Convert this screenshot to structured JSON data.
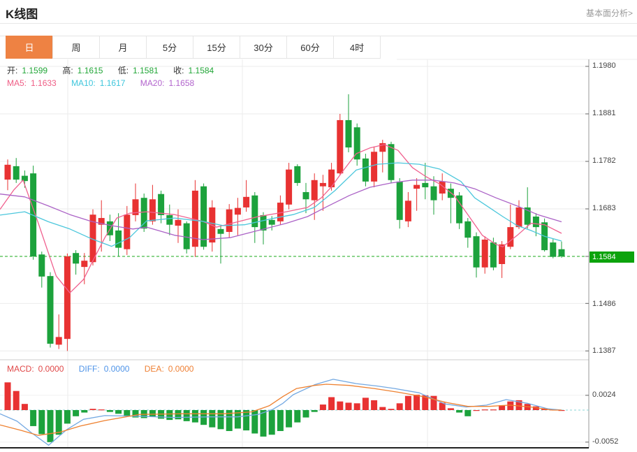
{
  "header": {
    "title": "K线图",
    "link": "基本面分析>"
  },
  "tabs": {
    "items": [
      {
        "label": "日",
        "active": true
      },
      {
        "label": "周",
        "active": false
      },
      {
        "label": "月",
        "active": false
      },
      {
        "label": "5分",
        "active": false
      },
      {
        "label": "15分",
        "active": false
      },
      {
        "label": "30分",
        "active": false
      },
      {
        "label": "60分",
        "active": false
      },
      {
        "label": "4时",
        "active": false
      }
    ]
  },
  "ohlc": {
    "items": [
      {
        "label": "开:",
        "value": "1.1599"
      },
      {
        "label": "高:",
        "value": "1.1615"
      },
      {
        "label": "低:",
        "value": "1.1581"
      },
      {
        "label": "收:",
        "value": "1.1584"
      }
    ]
  },
  "ma_legend": {
    "items": [
      {
        "label": "MA5:",
        "value": "1.1633"
      },
      {
        "label": "MA10:",
        "value": "1.1617"
      },
      {
        "label": "MA20:",
        "value": "1.1658"
      }
    ]
  },
  "macd_legend": {
    "items": [
      {
        "label": "MACD:",
        "value": "0.0000"
      },
      {
        "label": "DIFF:",
        "value": "0.0000"
      },
      {
        "label": "DEA:",
        "value": "0.0000"
      }
    ]
  },
  "price_axis": {
    "labels": [
      "1.1980",
      "1.1881",
      "1.1782",
      "1.1683",
      "1.1486",
      "1.1387"
    ],
    "current": {
      "value": "1.1584"
    }
  },
  "macd_axis": {
    "labels": [
      "0.0024",
      "-0.0052"
    ]
  },
  "colors": {
    "accent_orange": "#ee8243",
    "up_red": "#e83232",
    "down_green": "#1ca23c",
    "ohlc_value_green": "#21a637",
    "ma5_pink": "#ef5d85",
    "ma10_cyan": "#3ec6dc",
    "ma20_purple": "#b264cd",
    "macd_red": "#e04848",
    "diff_blue": "#4f94e8",
    "dea_orange": "#ef8136",
    "badge_green": "#0ca30c",
    "current_line_green": "#18a818"
  },
  "chart_data": {
    "type": "candlestick+macd",
    "title": "K线图",
    "price_ticks": [
      1.198,
      1.1881,
      1.1782,
      1.1683,
      1.1584,
      1.1486,
      1.1387
    ],
    "current_price": 1.1584,
    "today": {
      "open": 1.1599,
      "high": 1.1615,
      "low": 1.1581,
      "close": 1.1584
    },
    "ma_values": {
      "ma5": 1.1633,
      "ma10": 1.1617,
      "ma20": 1.1658
    },
    "up_color": "#e83232",
    "down_color": "#1ca23c",
    "candles": [
      [
        1.1744,
        1.1786,
        1.1722,
        1.1775
      ],
      [
        1.1772,
        1.1789,
        1.1737,
        1.1744
      ],
      [
        1.1752,
        1.1763,
        1.1727,
        1.1741
      ],
      [
        1.1757,
        1.1773,
        1.1577,
        1.1584
      ],
      [
        1.1588,
        1.1594,
        1.1519,
        1.1542
      ],
      [
        1.1543,
        1.1551,
        1.1394,
        1.1402
      ],
      [
        1.14,
        1.1463,
        1.1391,
        1.1416
      ],
      [
        1.1412,
        1.159,
        1.1387,
        1.1584
      ],
      [
        1.1591,
        1.1597,
        1.1546,
        1.1569
      ],
      [
        1.1562,
        1.1591,
        1.1526,
        1.1575
      ],
      [
        1.1572,
        1.1682,
        1.1565,
        1.1671
      ],
      [
        1.165,
        1.1701,
        1.1594,
        1.1664
      ],
      [
        1.1657,
        1.1671,
        1.1616,
        1.1628
      ],
      [
        1.1638,
        1.1674,
        1.1584,
        1.1602
      ],
      [
        1.1599,
        1.1689,
        1.1587,
        1.1671
      ],
      [
        1.167,
        1.1736,
        1.1657,
        1.1703
      ],
      [
        1.1706,
        1.1715,
        1.1635,
        1.1642
      ],
      [
        1.1657,
        1.1733,
        1.165,
        1.1703
      ],
      [
        1.1714,
        1.1721,
        1.1653,
        1.167
      ],
      [
        1.167,
        1.1692,
        1.1628,
        1.165
      ],
      [
        1.1648,
        1.1682,
        1.1612,
        1.166
      ],
      [
        1.1653,
        1.1657,
        1.159,
        1.1599
      ],
      [
        1.1604,
        1.1743,
        1.1583,
        1.1721
      ],
      [
        1.173,
        1.1736,
        1.1598,
        1.1604
      ],
      [
        1.1613,
        1.1701,
        1.1594,
        1.1686
      ],
      [
        1.1641,
        1.165,
        1.1569,
        1.1631
      ],
      [
        1.1635,
        1.1693,
        1.1623,
        1.1682
      ],
      [
        1.1671,
        1.1706,
        1.1628,
        1.1685
      ],
      [
        1.1686,
        1.1743,
        1.1677,
        1.1708
      ],
      [
        1.1711,
        1.1718,
        1.1612,
        1.1645
      ],
      [
        1.167,
        1.1676,
        1.1609,
        1.1638
      ],
      [
        1.166,
        1.1668,
        1.1638,
        1.165
      ],
      [
        1.1657,
        1.1711,
        1.165,
        1.1696
      ],
      [
        1.1692,
        1.1779,
        1.1682,
        1.1765
      ],
      [
        1.1772,
        1.1776,
        1.1731,
        1.1737
      ],
      [
        1.1718,
        1.1737,
        1.1674,
        1.1703
      ],
      [
        1.1701,
        1.1757,
        1.166,
        1.1743
      ],
      [
        1.173,
        1.1754,
        1.1679,
        1.1737
      ],
      [
        1.1728,
        1.1779,
        1.1721,
        1.1765
      ],
      [
        1.1757,
        1.1881,
        1.1754,
        1.1868
      ],
      [
        1.1868,
        1.1922,
        1.1801,
        1.1811
      ],
      [
        1.1853,
        1.1861,
        1.1773,
        1.1786
      ],
      [
        1.1788,
        1.1798,
        1.173,
        1.174
      ],
      [
        1.174,
        1.1813,
        1.1728,
        1.1802
      ],
      [
        1.1802,
        1.1827,
        1.1759,
        1.182
      ],
      [
        1.1818,
        1.1823,
        1.1736,
        1.1743
      ],
      [
        1.174,
        1.1747,
        1.1642,
        1.166
      ],
      [
        1.1657,
        1.1718,
        1.1645,
        1.17
      ],
      [
        1.1725,
        1.1747,
        1.1679,
        1.1733
      ],
      [
        1.1737,
        1.1779,
        1.1703,
        1.1728
      ],
      [
        1.173,
        1.1751,
        1.1671,
        1.1701
      ],
      [
        1.1715,
        1.1757,
        1.1701,
        1.174
      ],
      [
        1.1725,
        1.1736,
        1.1653,
        1.1706
      ],
      [
        1.1711,
        1.1718,
        1.1641,
        1.1653
      ],
      [
        1.1657,
        1.1664,
        1.1602,
        1.1623
      ],
      [
        1.1626,
        1.1634,
        1.154,
        1.1561
      ],
      [
        1.1561,
        1.1626,
        1.1548,
        1.1619
      ],
      [
        1.1613,
        1.1623,
        1.1555,
        1.1561
      ],
      [
        1.1568,
        1.1616,
        1.1539,
        1.1609
      ],
      [
        1.1604,
        1.1692,
        1.1599,
        1.1645
      ],
      [
        1.1645,
        1.1701,
        1.1641,
        1.1686
      ],
      [
        1.1686,
        1.1728,
        1.1642,
        1.165
      ],
      [
        1.1667,
        1.1674,
        1.1626,
        1.1645
      ],
      [
        1.1655,
        1.1663,
        1.1594,
        1.1597
      ],
      [
        1.1613,
        1.162,
        1.158,
        1.1583
      ],
      [
        1.1599,
        1.1615,
        1.1581,
        1.1584
      ]
    ],
    "ma5_points": [
      [
        -0.9,
        1.1682
      ],
      [
        0.7,
        1.1722
      ],
      [
        1.8,
        1.1743
      ],
      [
        3.6,
        1.1653
      ],
      [
        5.7,
        1.1543
      ],
      [
        7.3,
        1.1508
      ],
      [
        8.9,
        1.1536
      ],
      [
        10.0,
        1.1575
      ],
      [
        11.4,
        1.1623
      ],
      [
        12.8,
        1.1664
      ],
      [
        14.3,
        1.1674
      ],
      [
        16.3,
        1.1677
      ],
      [
        19.6,
        1.1671
      ],
      [
        22.9,
        1.1657
      ],
      [
        24.5,
        1.1645
      ],
      [
        26.1,
        1.1652
      ],
      [
        29.4,
        1.1667
      ],
      [
        32.7,
        1.1677
      ],
      [
        35.2,
        1.1686
      ],
      [
        36.8,
        1.1706
      ],
      [
        38.0,
        1.1729
      ],
      [
        39.3,
        1.1761
      ],
      [
        40.9,
        1.1798
      ],
      [
        42.5,
        1.181
      ],
      [
        44.2,
        1.1817
      ],
      [
        45.8,
        1.1805
      ],
      [
        47.5,
        1.1769
      ],
      [
        49.1,
        1.175
      ],
      [
        50.7,
        1.1735
      ],
      [
        52.4,
        1.1711
      ],
      [
        54.0,
        1.1671
      ],
      [
        55.7,
        1.1628
      ],
      [
        57.3,
        1.1609
      ],
      [
        58.1,
        1.1604
      ],
      [
        59.8,
        1.1628
      ],
      [
        61.4,
        1.1653
      ],
      [
        63.0,
        1.165
      ],
      [
        65.0,
        1.1632
      ]
    ],
    "ma10_points": [
      [
        -0.9,
        1.167
      ],
      [
        2.0,
        1.1677
      ],
      [
        4.8,
        1.1656
      ],
      [
        7.3,
        1.1641
      ],
      [
        9.8,
        1.1621
      ],
      [
        12.2,
        1.1605
      ],
      [
        14.3,
        1.1623
      ],
      [
        16.3,
        1.1658
      ],
      [
        19.6,
        1.1664
      ],
      [
        22.9,
        1.1657
      ],
      [
        25.3,
        1.1648
      ],
      [
        27.8,
        1.165
      ],
      [
        31.1,
        1.1663
      ],
      [
        33.5,
        1.1671
      ],
      [
        36.0,
        1.1686
      ],
      [
        38.4,
        1.1721
      ],
      [
        40.9,
        1.1764
      ],
      [
        43.4,
        1.1776
      ],
      [
        45.8,
        1.1779
      ],
      [
        48.3,
        1.1776
      ],
      [
        50.7,
        1.1766
      ],
      [
        53.2,
        1.174
      ],
      [
        54.8,
        1.1706
      ],
      [
        56.5,
        1.1686
      ],
      [
        58.1,
        1.1667
      ],
      [
        59.8,
        1.1648
      ],
      [
        61.4,
        1.1638
      ],
      [
        63.0,
        1.1626
      ],
      [
        65.0,
        1.1616
      ]
    ],
    "ma20_points": [
      [
        -0.9,
        1.1714
      ],
      [
        2.0,
        1.1708
      ],
      [
        4.8,
        1.1689
      ],
      [
        7.3,
        1.1671
      ],
      [
        9.8,
        1.1657
      ],
      [
        12.2,
        1.1648
      ],
      [
        14.7,
        1.1641
      ],
      [
        16.3,
        1.1645
      ],
      [
        19.6,
        1.1628
      ],
      [
        22.9,
        1.1619
      ],
      [
        26.1,
        1.1623
      ],
      [
        29.4,
        1.1638
      ],
      [
        32.7,
        1.1653
      ],
      [
        35.2,
        1.1667
      ],
      [
        37.6,
        1.1689
      ],
      [
        40.1,
        1.1711
      ],
      [
        42.5,
        1.1728
      ],
      [
        45.0,
        1.1737
      ],
      [
        47.5,
        1.1743
      ],
      [
        49.9,
        1.1743
      ],
      [
        52.4,
        1.1737
      ],
      [
        54.8,
        1.1725
      ],
      [
        57.3,
        1.1706
      ],
      [
        59.8,
        1.1689
      ],
      [
        62.2,
        1.1671
      ],
      [
        65.0,
        1.1656
      ]
    ],
    "macd": {
      "ticks": [
        0.0024,
        -0.0052
      ],
      "histogram": [
        0.0045,
        0.0031,
        0.001,
        -0.0026,
        -0.0039,
        -0.0052,
        -0.004,
        -0.0022,
        -0.001,
        -0.0004,
        0.0002,
        0.0001,
        -0.0003,
        -0.0006,
        -0.001,
        -0.0012,
        -0.0013,
        -0.0011,
        -0.0014,
        -0.0016,
        -0.0015,
        -0.0018,
        -0.002,
        -0.0024,
        -0.0028,
        -0.0031,
        -0.0034,
        -0.003,
        -0.0033,
        -0.0038,
        -0.0043,
        -0.004,
        -0.0034,
        -0.0028,
        -0.002,
        -0.0012,
        -0.0003,
        0.0009,
        0.0021,
        0.0014,
        0.0012,
        0.0011,
        0.002,
        0.0016,
        0.0005,
        0.0002,
        0.0011,
        0.0023,
        0.0025,
        0.0024,
        0.0023,
        0.0012,
        0.0003,
        -0.0004,
        -0.001,
        0.0,
        0.0001,
        0.0001,
        0.0008,
        0.0014,
        0.0016,
        0.001,
        0.0006,
        0.0003,
        0.0001,
        0.0
      ],
      "diff_points": [
        [
          -0.9,
          -0.0006
        ],
        [
          1.1,
          -0.0018
        ],
        [
          2.8,
          -0.0037
        ],
        [
          4.8,
          -0.0057
        ],
        [
          6.9,
          -0.0032
        ],
        [
          8.9,
          -0.0015
        ],
        [
          11.4,
          -0.0009
        ],
        [
          15.5,
          -0.001
        ],
        [
          19.6,
          -0.0012
        ],
        [
          23.7,
          -0.0011
        ],
        [
          27.0,
          -0.0011
        ],
        [
          29.4,
          -0.0007
        ],
        [
          31.1,
          0.0001
        ],
        [
          32.3,
          0.0011
        ],
        [
          33.5,
          0.0025
        ],
        [
          36.0,
          0.0041
        ],
        [
          38.2,
          0.005
        ],
        [
          40.9,
          0.0043
        ],
        [
          43.4,
          0.0039
        ],
        [
          45.4,
          0.0035
        ],
        [
          48.3,
          0.0028
        ],
        [
          51.3,
          0.001
        ],
        [
          53.8,
          0.0005
        ],
        [
          56.2,
          0.0008
        ],
        [
          58.5,
          0.0017
        ],
        [
          61.0,
          0.0011
        ],
        [
          63.4,
          0.0002
        ],
        [
          65.0,
          0.0
        ]
      ],
      "dea_points": [
        [
          -0.9,
          -0.0024
        ],
        [
          1.6,
          -0.0033
        ],
        [
          3.6,
          -0.0041
        ],
        [
          6.1,
          -0.0036
        ],
        [
          8.5,
          -0.0026
        ],
        [
          11.4,
          -0.0017
        ],
        [
          15.5,
          -0.0007
        ],
        [
          20.4,
          -0.0006
        ],
        [
          25.3,
          -0.0006
        ],
        [
          28.6,
          -0.0003
        ],
        [
          30.7,
          0.0007
        ],
        [
          32.3,
          0.0022
        ],
        [
          33.9,
          0.0035
        ],
        [
          36.0,
          0.004
        ],
        [
          37.4,
          0.0042
        ],
        [
          40.1,
          0.004
        ],
        [
          43.0,
          0.0035
        ],
        [
          45.8,
          0.0029
        ],
        [
          48.7,
          0.0022
        ],
        [
          51.6,
          0.0012
        ],
        [
          54.0,
          0.0006
        ],
        [
          56.5,
          0.0006
        ],
        [
          58.9,
          0.0008
        ],
        [
          61.4,
          0.0005
        ],
        [
          63.9,
          0.0
        ],
        [
          65.0,
          0.0
        ]
      ]
    }
  }
}
